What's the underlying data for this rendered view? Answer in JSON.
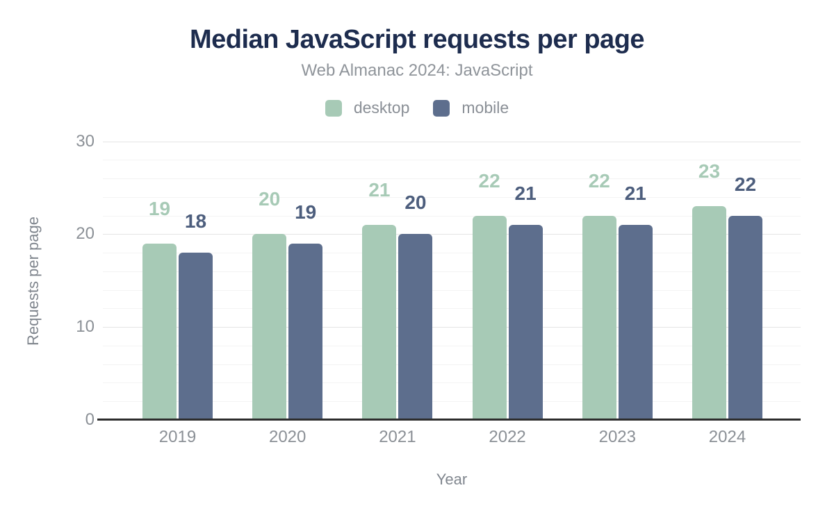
{
  "chart_data": {
    "type": "bar",
    "title": "Median JavaScript requests per page",
    "subtitle": "Web Almanac 2024: JavaScript",
    "xlabel": "Year",
    "ylabel": "Requests per page",
    "categories": [
      "2019",
      "2020",
      "2021",
      "2022",
      "2023",
      "2024"
    ],
    "series": [
      {
        "name": "desktop",
        "color": "#a7cab6",
        "label_color": "#a7cab6",
        "values": [
          19,
          20,
          21,
          22,
          22,
          23
        ]
      },
      {
        "name": "mobile",
        "color": "#5d6e8d",
        "label_color": "#4d5e7d",
        "values": [
          18,
          19,
          20,
          21,
          21,
          22
        ]
      }
    ],
    "ylim": [
      0,
      30
    ],
    "y_major_ticks": [
      0,
      10,
      20,
      30
    ],
    "y_minor_step": 2,
    "grid": "on",
    "legend_position": "top",
    "data_labels": "above-bars"
  },
  "colors": {
    "background": "#ffffff",
    "title": "#1d2c4e",
    "subtitle": "#8f949a",
    "tick_text": "#8b9096",
    "axis_title_text": "#80868e",
    "axis_line": "#2d2d2d",
    "gridline_major": "#e4e4e4",
    "gridline_minor": "#f3f3f3",
    "desktop": "#a7cab6",
    "mobile": "#5d6e8d"
  }
}
